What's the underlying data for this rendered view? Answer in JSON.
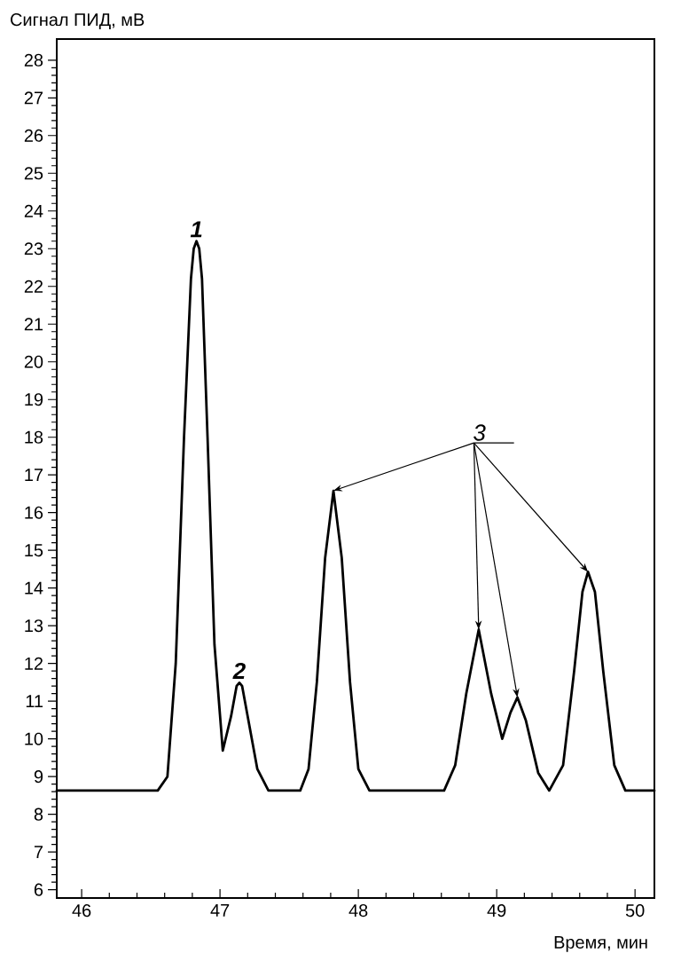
{
  "chart_data": {
    "type": "line",
    "xlabel": "Время, мин",
    "ylabel": "Сигнал ПИД, мВ",
    "x": [
      45.82,
      46.55,
      46.62,
      46.68,
      46.74,
      46.79,
      46.81,
      46.83,
      46.85,
      46.87,
      46.91,
      46.96,
      47.02,
      47.08,
      47.12,
      47.14,
      47.16,
      47.2,
      47.27,
      47.35,
      47.58,
      47.64,
      47.7,
      47.76,
      47.82,
      47.88,
      47.94,
      48.0,
      48.08,
      48.62,
      48.7,
      48.78,
      48.87,
      48.96,
      49.04,
      49.1,
      49.15,
      49.21,
      49.3,
      49.38,
      49.48,
      49.56,
      49.62,
      49.66,
      49.71,
      49.77,
      49.85,
      49.93,
      50.14
    ],
    "values": [
      8.63,
      8.63,
      9.0,
      12.0,
      18.0,
      22.2,
      23.0,
      23.2,
      23.0,
      22.2,
      18.0,
      12.5,
      9.69,
      10.6,
      11.4,
      11.49,
      11.4,
      10.6,
      9.2,
      8.63,
      8.63,
      9.2,
      11.5,
      14.8,
      16.58,
      14.8,
      11.5,
      9.2,
      8.63,
      8.63,
      9.3,
      11.2,
      12.9,
      11.2,
      10.0,
      10.7,
      11.1,
      10.5,
      9.1,
      8.63,
      9.3,
      11.8,
      13.9,
      14.43,
      13.9,
      11.8,
      9.3,
      8.63,
      8.63
    ],
    "color": "#000000",
    "xlim": [
      45.82,
      50.14
    ],
    "ylim": [
      5.78,
      28.56
    ],
    "xticks": [
      46,
      47,
      48,
      49,
      50
    ],
    "yticks": [
      6,
      7,
      8,
      9,
      10,
      11,
      12,
      13,
      14,
      15,
      16,
      17,
      18,
      19,
      20,
      21,
      22,
      23,
      24,
      25,
      26,
      27,
      28
    ],
    "annotations": [
      {
        "text": "1",
        "x": 46.83,
        "y": 23.2
      },
      {
        "text": "2",
        "x": 47.14,
        "y": 11.49
      },
      {
        "text": "3",
        "x": 47.82,
        "y": 16.58
      }
    ]
  }
}
